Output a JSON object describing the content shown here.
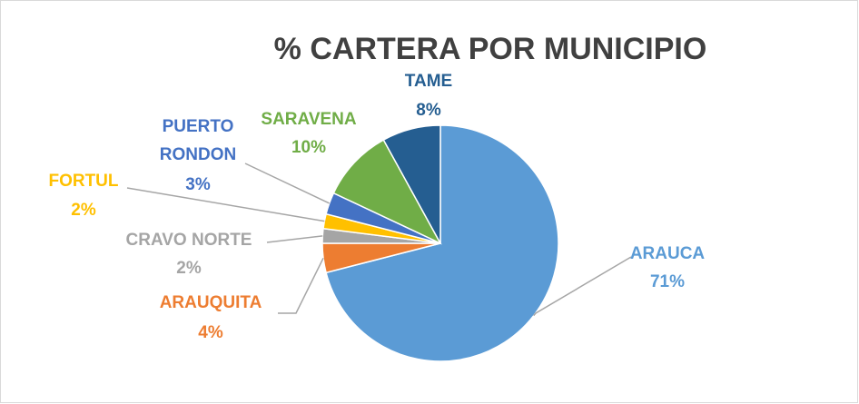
{
  "chart_data": {
    "type": "pie",
    "title": "% CARTERA POR MUNICIPIO",
    "categories": [
      "ARAUCA",
      "ARAUQUITA",
      "CRAVO NORTE",
      "FORTUL",
      "PUERTO RONDON",
      "SARAVENA",
      "TAME"
    ],
    "values": [
      71,
      4,
      2,
      2,
      3,
      10,
      8
    ],
    "value_labels": [
      "71%",
      "4%",
      "2%",
      "2%",
      "3%",
      "10%",
      "8%"
    ],
    "colors": [
      "#5b9bd5",
      "#ed7d31",
      "#a5a5a5",
      "#ffc000",
      "#4472c4",
      "#70ad47",
      "#255e91"
    ]
  }
}
